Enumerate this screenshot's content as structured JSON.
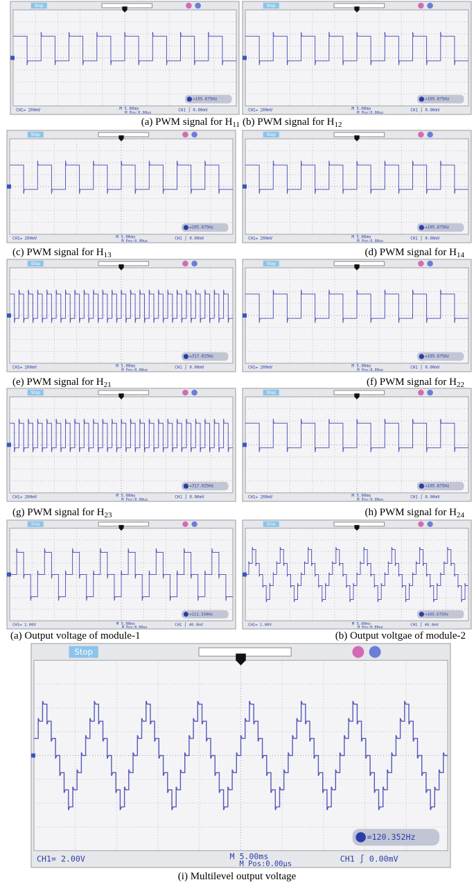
{
  "panels": [
    {
      "caption": {
        "text": "(a) PWM signal for H",
        "sub": "11"
      },
      "status": "Stop",
      "ch1": "CH1= 200mV",
      "timebase": "M 5.00ms",
      "mpos": "M Pos:0.00us",
      "trigger": "CH1 ∫ 0.00mV",
      "freq": "=105.675Hz"
    },
    {
      "caption": {
        "text": "(b) PWM signal for H",
        "sub": "12"
      },
      "status": "Stop",
      "ch1": "CH1= 200mV",
      "timebase": "M 5.00ms",
      "mpos": "M Pos:0.00us",
      "trigger": "CH1 ∫ 0.00mV",
      "freq": "=105.675Hz"
    },
    {
      "caption": {
        "text": "(c) PWM signal for H",
        "sub": "13"
      },
      "status": "Stop",
      "ch1": "CH1= 200mV",
      "timebase": "M 5.00ms",
      "mpos": "M Pos:0.00us",
      "trigger": "CH1 ∫ 0.00mV",
      "freq": "=105.675Hz"
    },
    {
      "caption": {
        "text": "(d) PWM signal for H",
        "sub": "14"
      },
      "status": "Stop",
      "ch1": "CH1= 200mV",
      "timebase": "M 5.00ms",
      "mpos": "M Pos:0.00us",
      "trigger": "CH1 ∫ 0.00mV",
      "freq": "=105.675Hz"
    },
    {
      "caption": {
        "text": "(e) PWM signal for H",
        "sub": "21"
      },
      "status": "Stop",
      "ch1": "CH1= 200mV",
      "timebase": "M 5.00ms",
      "mpos": "M Pos:0.00us",
      "trigger": "CH1 ∫ 0.00mV",
      "freq": "=317.025Hz"
    },
    {
      "caption": {
        "text": "(f) PWM signal for H",
        "sub": "22"
      },
      "status": "Stop",
      "ch1": "CH1= 200mV",
      "timebase": "M 5.00ms",
      "mpos": "M Pos:0.00us",
      "trigger": "CH1 ∫ 0.00mV",
      "freq": "=105.675Hz"
    },
    {
      "caption": {
        "text": "(g) PWM signal for H",
        "sub": "23"
      },
      "status": "Stop",
      "ch1": "CH1= 200mV",
      "timebase": "M 5.00ms",
      "mpos": "M Pos:0.00us",
      "trigger": "CH1 ∫ 0.00mV",
      "freq": "=317.025Hz"
    },
    {
      "caption": {
        "text": "(h) PWM signal for H",
        "sub": "24"
      },
      "status": "Stop",
      "ch1": "CH1= 200mV",
      "timebase": "M 5.00ms",
      "mpos": "M Pos:0.00us",
      "trigger": "CH1 ∫ 0.00mV",
      "freq": "=105.675Hz"
    },
    {
      "caption": {
        "text": "(a) Output voltage of module-1"
      },
      "status": "Stop",
      "ch1": "CH1= 1.00V",
      "timebase": "M 5.00ms",
      "mpos": "M Pos:0.00us",
      "trigger": "CH1 ∫ 40.0mV",
      "freq": "=211.350Hz"
    },
    {
      "caption": {
        "text": "(b) Output voltgae of module-2"
      },
      "status": "Stop",
      "ch1": "CH1= 1.00V",
      "timebase": "M 5.00ms",
      "mpos": "M Pos:0.00us",
      "trigger": "CH1 ∫ 40.0mV",
      "freq": "=105.675Hz"
    },
    {
      "caption": {
        "text": "(i) Multilevel output voltage"
      },
      "status": "Stop",
      "ch1": "CH1= 2.00V",
      "timebase": "M 5.00ms",
      "mpos": "M Pos:0.00μs",
      "trigger": "CH1 ∫ 0.00mV",
      "freq": "=120.352Hz"
    }
  ]
}
